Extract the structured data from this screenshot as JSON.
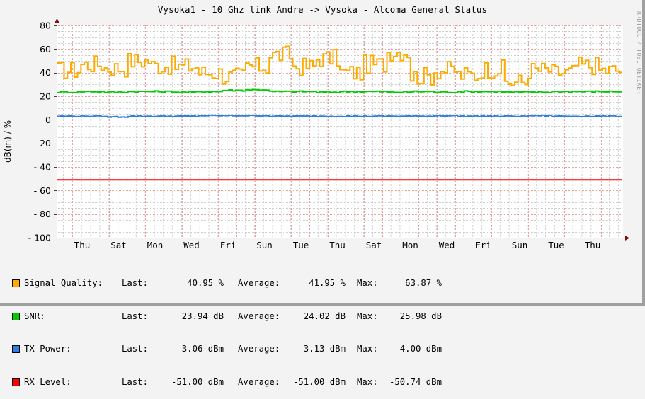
{
  "title": "Vysoka1 - 10 Ghz link Andre -> Vysoka - Alcoma General Status",
  "watermark": "RRDTOOL / TOBI OETIKER",
  "y_axis_label": "dB(m) / %",
  "y_ticks": [
    "80",
    "60",
    "40",
    "20",
    "0",
    "-20",
    "-40",
    "-60",
    "-80",
    "-100"
  ],
  "x_ticks": [
    "Thu",
    "Sat",
    "Mon",
    "Wed",
    "Fri",
    "Sun",
    "Tue",
    "Thu",
    "Sat",
    "Mon",
    "Wed",
    "Fri",
    "Sun",
    "Tue",
    "Thu"
  ],
  "legend": [
    {
      "name": "Signal Quality:",
      "color": "#FFAA00",
      "last_label": "Last:",
      "last": "40.95 %",
      "avg_label": "Average:",
      "avg": "41.95 %",
      "max_label": "Max:",
      "max": "63.87 %"
    },
    {
      "name": "SNR:",
      "color": "#00CC00",
      "last_label": "Last:",
      "last": "23.94 dB",
      "avg_label": "Average:",
      "avg": "24.02 dB",
      "max_label": "Max:",
      "max": "25.98 dB"
    },
    {
      "name": "TX Power:",
      "color": "#2F7FDF",
      "last_label": "Last:",
      "last": "3.06 dBm",
      "avg_label": "Average:",
      "avg": "3.13 dBm",
      "max_label": "Max:",
      "max": "4.00 dBm"
    },
    {
      "name": "RX Level:",
      "color": "#FF0000",
      "last_label": "Last:",
      "last": "-51.00 dBm",
      "avg_label": "Average:",
      "avg": "-51.00 dBm",
      "max_label": "Max:",
      "max": "-50.74 dBm"
    }
  ],
  "chart_data": {
    "type": "line",
    "title": "Vysoka1 - 10 Ghz link Andre -> Vysoka - Alcoma General Status",
    "xlabel": "",
    "ylabel": "dB(m) / %",
    "ylim": [
      -100,
      80
    ],
    "grid": true,
    "legend_position": "bottom",
    "categories": [
      "Thu",
      "Sat",
      "Mon",
      "Wed",
      "Fri",
      "Sun",
      "Tue",
      "Thu",
      "Sat",
      "Mon",
      "Wed",
      "Fri",
      "Sun",
      "Tue",
      "Thu"
    ],
    "series": [
      {
        "name": "Signal Quality",
        "unit": "%",
        "color": "#FFAA00",
        "values_approx": [
          42,
          47,
          44,
          50,
          46,
          45,
          40,
          37,
          45,
          55,
          45,
          52,
          40,
          47,
          58,
          37,
          42,
          38,
          43,
          32,
          42,
          40,
          46,
          42
        ],
        "last": 40.95,
        "average": 41.95,
        "max": 63.87
      },
      {
        "name": "SNR",
        "unit": "dB",
        "color": "#00CC00",
        "values_approx": [
          23.5,
          24,
          23.5,
          24,
          24,
          23.5,
          24,
          25,
          25.5,
          24,
          24,
          23.5,
          24,
          24,
          23.5,
          24,
          23.5,
          24,
          24,
          23.5,
          23.5,
          24,
          24,
          24
        ],
        "last": 23.94,
        "average": 24.02,
        "max": 25.98
      },
      {
        "name": "TX Power",
        "unit": "dBm",
        "color": "#2F7FDF",
        "values_approx": [
          3,
          3,
          2.5,
          3,
          3,
          3,
          3.5,
          3.5,
          3.5,
          3,
          3,
          3,
          3,
          3,
          3,
          3,
          3.5,
          3,
          3,
          3,
          3.5,
          3,
          3,
          3
        ],
        "last": 3.06,
        "average": 3.13,
        "max": 4.0
      },
      {
        "name": "RX Level",
        "unit": "dBm",
        "color": "#FF0000",
        "values_approx": [
          -51,
          -51,
          -51,
          -51,
          -51,
          -51,
          -51,
          -51,
          -51,
          -51,
          -51,
          -51,
          -51,
          -51,
          -51,
          -51,
          -51,
          -51,
          -51,
          -51,
          -51,
          -51,
          -51,
          -51
        ],
        "last": -51.0,
        "average": -51.0,
        "max": -50.74
      }
    ]
  }
}
